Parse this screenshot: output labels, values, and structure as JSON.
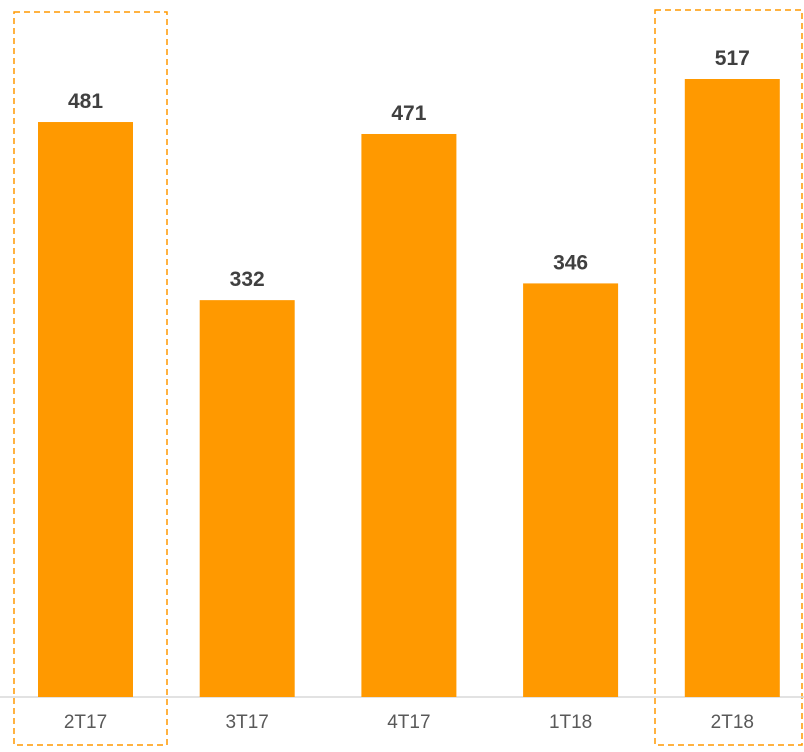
{
  "chart_data": {
    "type": "bar",
    "categories": [
      "2T17",
      "3T17",
      "4T17",
      "1T18",
      "2T18"
    ],
    "values": [
      481,
      332,
      471,
      346,
      517
    ],
    "color": "#ff9900"
  }
}
